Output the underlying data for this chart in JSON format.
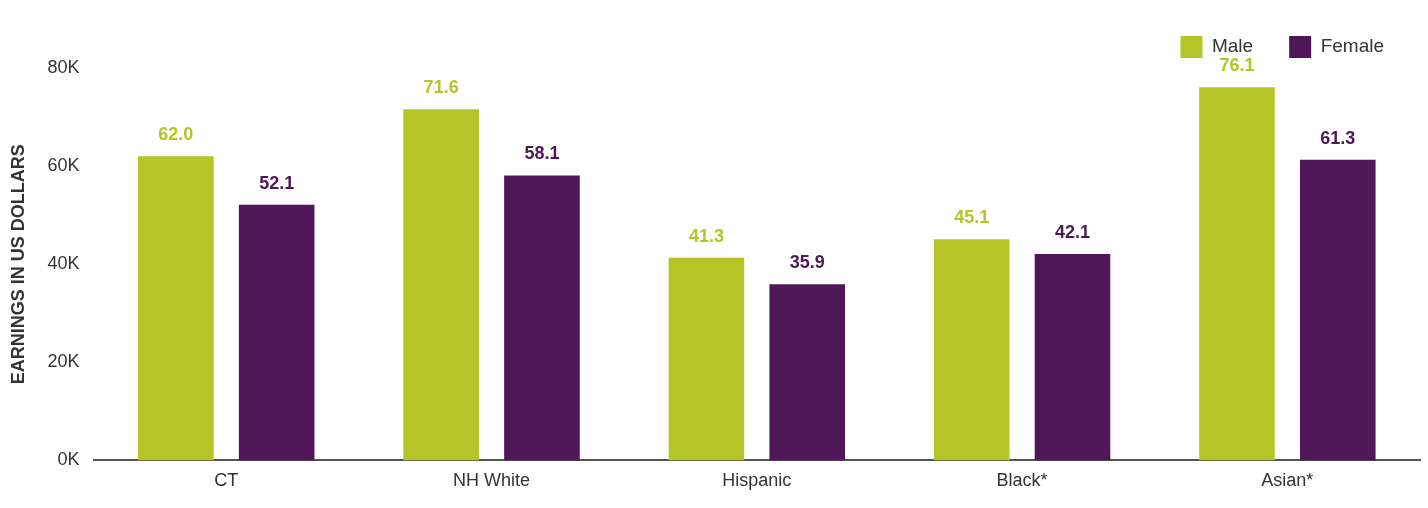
{
  "chart_data": {
    "type": "bar",
    "ylabel": "EARNINGS IN US DOLLARS",
    "categories": [
      "CT",
      "NH White",
      "Hispanic",
      "Black*",
      "Asian*"
    ],
    "series": [
      {
        "name": "Male",
        "color": "#b5c426",
        "values": [
          62.0,
          71.6,
          41.3,
          45.1,
          76.1
        ],
        "value_labels": [
          "62.0",
          "71.6",
          "41.3",
          "45.1",
          "76.1"
        ]
      },
      {
        "name": "Female",
        "color": "#4f1758",
        "values": [
          52.1,
          58.1,
          35.9,
          42.1,
          61.3
        ],
        "value_labels": [
          "52.1",
          "58.1",
          "35.9",
          "42.1",
          "61.3"
        ]
      }
    ],
    "ylim": [
      0,
      80
    ],
    "yticks": [
      {
        "value": 0,
        "label": "0K"
      },
      {
        "value": 20,
        "label": "20K"
      },
      {
        "value": 40,
        "label": "40K"
      },
      {
        "value": 60,
        "label": "60K"
      },
      {
        "value": 80,
        "label": "80K"
      }
    ],
    "grid": false,
    "legend": "top right"
  }
}
